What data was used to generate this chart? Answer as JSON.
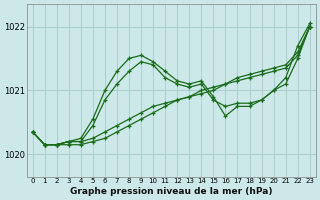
{
  "title": "Graphe pression niveau de la mer (hPa)",
  "background_color": "#cce8e8",
  "grid_color": "#aacfcf",
  "line_color": "#1a6b1a",
  "xlim_min": -0.5,
  "xlim_max": 23.5,
  "ylim_min": 1019.65,
  "ylim_max": 1022.35,
  "yticks": [
    1020,
    1021,
    1022
  ],
  "xticks": [
    0,
    1,
    2,
    3,
    4,
    5,
    6,
    7,
    8,
    9,
    10,
    11,
    12,
    13,
    14,
    15,
    16,
    17,
    18,
    19,
    20,
    21,
    22,
    23
  ],
  "series": [
    {
      "y": [
        1020.35,
        1020.15,
        1020.15,
        1020.15,
        1020.15,
        1020.2,
        1020.25,
        1020.35,
        1020.45,
        1020.55,
        1020.65,
        1020.75,
        1020.85,
        1020.9,
        1021.0,
        1021.05,
        1021.1,
        1021.15,
        1021.2,
        1021.25,
        1021.3,
        1021.35,
        1021.55,
        1022.0
      ]
    },
    {
      "y": [
        1020.35,
        1020.15,
        1020.15,
        1020.2,
        1020.2,
        1020.25,
        1020.35,
        1020.45,
        1020.55,
        1020.65,
        1020.75,
        1020.8,
        1020.85,
        1020.9,
        1020.95,
        1021.0,
        1021.1,
        1021.2,
        1021.25,
        1021.3,
        1021.35,
        1021.4,
        1021.6,
        1022.0
      ]
    },
    {
      "y": [
        1020.35,
        1020.15,
        1020.15,
        1020.2,
        1020.2,
        1020.45,
        1020.85,
        1021.1,
        1021.3,
        1021.45,
        1021.4,
        1021.2,
        1021.1,
        1021.05,
        1021.1,
        1020.85,
        1020.75,
        1020.8,
        1020.8,
        1020.85,
        1021.0,
        1021.1,
        1021.5,
        1022.0
      ]
    },
    {
      "y": [
        1020.35,
        1020.15,
        1020.15,
        1020.2,
        1020.25,
        1020.55,
        1021.0,
        1021.3,
        1021.5,
        1021.55,
        1021.45,
        1021.3,
        1021.15,
        1021.1,
        1021.15,
        1020.9,
        1020.6,
        1020.75,
        1020.75,
        1020.85,
        1021.0,
        1021.2,
        1021.7,
        1022.05
      ]
    }
  ]
}
